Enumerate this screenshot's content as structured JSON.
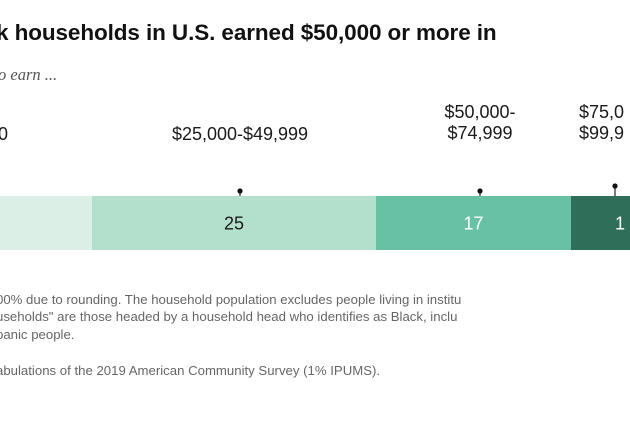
{
  "title": "k households in U.S. earned $50,000 or more in",
  "subtitle": "o earn ...",
  "chart_data": {
    "type": "bar",
    "orientation": "horizontal",
    "stacked": true,
    "categories": [
      "0",
      "$25,000-$49,999",
      "$50,000-\n$74,999",
      "$75,0\n$99,9"
    ],
    "values": [
      null,
      25,
      17,
      null
    ],
    "value_labels": [
      "",
      "25",
      "17",
      "1"
    ],
    "colors": [
      "#dcefe6",
      "#b3e0cc",
      "#68c0a5",
      "#2f6e59"
    ],
    "label_colors": [
      "#1a1a1a",
      "#1a1a1a",
      "#ffffff",
      "#ffffff"
    ],
    "title": "k households in U.S. earned $50,000 or more in",
    "xlabel": "",
    "ylabel": "",
    "grid": false,
    "legend": "labels above segments"
  },
  "note_lines": [
    "00% due to rounding. The household population excludes people living in institu",
    "useholds\" are those headed by a household head who identifies as Black, inclu",
    "panic people."
  ],
  "source": "abulations of the 2019 American Community Survey (1% IPUMS)."
}
